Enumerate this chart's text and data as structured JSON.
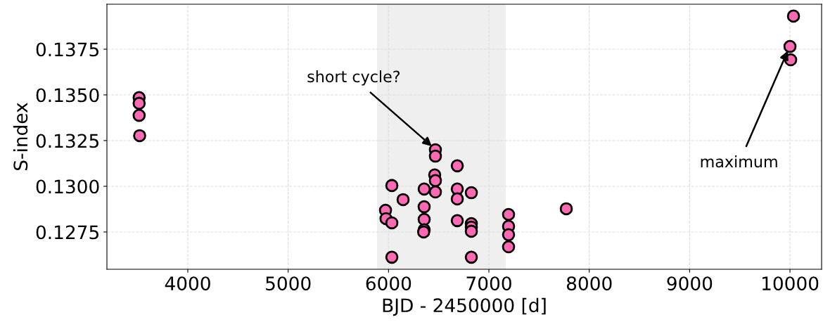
{
  "chart_data": {
    "type": "scatter",
    "xlabel": "BJD - 2450000 [d]",
    "ylabel": "S-index",
    "x": [
      3515,
      3515,
      3515,
      3520,
      6467,
      6467,
      6685,
      6460,
      6467,
      6033,
      6355,
      6467,
      6685,
      6685,
      6825,
      6145,
      5970,
      5975,
      6033,
      6355,
      6355,
      6355,
      6350,
      6685,
      6825,
      6825,
      6825,
      6033,
      6825,
      7196,
      7196,
      7196,
      7196,
      7771,
      10035,
      10000,
      10007
    ],
    "series": [
      {
        "color": "#ff69b4",
        "values": [
          0.13485,
          0.13454,
          0.13388,
          0.13277,
          0.132,
          0.13165,
          0.13112,
          0.13062,
          0.13031,
          0.13004,
          0.12985,
          0.12969,
          0.12985,
          0.12931,
          0.12965,
          0.12927,
          0.12869,
          0.12823,
          0.128,
          0.12888,
          0.12819,
          0.12762,
          0.1275,
          0.12812,
          0.12796,
          0.12777,
          0.12754,
          0.12612,
          0.12612,
          0.12846,
          0.12781,
          0.12735,
          0.12669,
          0.12877,
          0.13931,
          0.13765,
          0.13692
        ]
      }
    ],
    "marker": "circle",
    "grid": true,
    "xlim": [
      3194,
      10315
    ],
    "ylim": [
      0.12546,
      0.13996
    ],
    "xticks": [
      4000,
      5000,
      6000,
      7000,
      8000,
      9000,
      10000
    ],
    "yticks": [
      {
        "value": 0.1275,
        "label": "0.1275"
      },
      {
        "value": 0.13,
        "label": "0.1300"
      },
      {
        "value": 0.1325,
        "label": "0.1325"
      },
      {
        "value": 0.135,
        "label": "0.1350"
      },
      {
        "value": 0.1375,
        "label": "0.1375"
      }
    ],
    "bands": [
      {
        "axis": "x",
        "from": 5885,
        "to": 7168,
        "color": "#efefef"
      }
    ],
    "annotations": [
      {
        "text": "short cycle?",
        "x": 6432,
        "y": 0.13219
      },
      {
        "text": "maximum",
        "x": 9979,
        "y": 0.13742
      }
    ]
  }
}
